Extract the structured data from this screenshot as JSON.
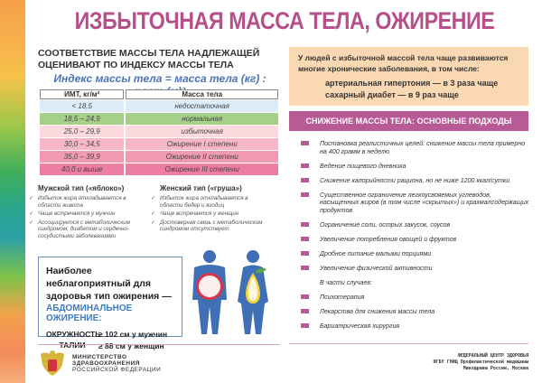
{
  "title": "ИЗБЫТОЧНАЯ МАССА ТЕЛА, ОЖИРЕНИЕ",
  "bmi_heading": "СООТВЕТСТВИЕ МАССЫ ТЕЛА НАДЛЕЖАЩЕЙ ОЦЕНИВАЮТ ПО ИНДЕКСУ МАССЫ ТЕЛА",
  "formula": "Индекс массы тела = масса тела (кг) : рост (м)²",
  "table": {
    "headers": [
      "ИМТ, кг/м²",
      "Масса тела"
    ],
    "rows": [
      {
        "bmi": "< 18,5",
        "mass": "недостаточная",
        "color": "#dcedf9"
      },
      {
        "bmi": "18,5 – 24,9",
        "mass": "нормальная",
        "color": "#a6d08a"
      },
      {
        "bmi": "25,0 – 29,9",
        "mass": "избыточная",
        "color": "#fbd9dc"
      },
      {
        "bmi": "30,0 – 34,5",
        "mass": "Ожирение I степени",
        "color": "#f7b8c6"
      },
      {
        "bmi": "35,0 – 39,9",
        "mass": "Ожирение II степени",
        "color": "#f29ab2"
      },
      {
        "bmi": "40,0 и выше",
        "mass": "Ожирение III степени",
        "color": "#ec7fa1"
      }
    ]
  },
  "male": {
    "title": "Мужской тип («яблоко»)",
    "items": [
      "Избыток жира откладывается в области живота",
      "Чаще встречается у мужчин",
      "Ассоциируется с метаболическим синдромом, диабетом и сердечно-сосудистыми заболеваниями"
    ]
  },
  "female": {
    "title": "Женский тип («груша»)",
    "items": [
      "Избыток жира откладывается в области бедер и ягодиц",
      "Чаще встречается у женщин",
      "Достоверная связь с метаболическим синдромом отсутствует"
    ]
  },
  "box": {
    "text": "Наиболее неблагоприятный для здоровья тип ожирения —",
    "accent": "АБДОМИНАЛЬНОЕ ОЖИРЕНИЕ:",
    "waist_label": "ОКРУЖНОСТЬ ТАЛИИ",
    "men": "≥ 102 см у мужчин",
    "women": "≥ 88 см у женщин"
  },
  "ministry": [
    "МИНИСТЕРСТВО",
    "ЗДРАВООХРАНЕНИЯ",
    "РОССИЙСКОЙ ФЕДЕРАЦИИ"
  ],
  "risk": {
    "intro": "У людей с избыточной массой тела чаще развиваются многие хронические заболевания, в том числе:",
    "line1": "артериальная гипертония — в 3 раза чаще",
    "line2": "сахарный диабет — в 9 раз чаще"
  },
  "approaches": {
    "title": "СНИЖЕНИЕ МАССЫ ТЕЛА: ОСНОВНЫЕ ПОДХОДЫ",
    "items": [
      "Постановка реалистичных целей: снижение массы тела примерно на 400 грамм в неделю",
      "Ведение пищевого дневника",
      "Снижение калорийности рациона, но не ниже 1200 ккал/сутки",
      "Существенное ограничение легкоусвояемых углеводов, насыщенных жиров (в том числе «скрытых») и крахмалсодержащих продуктов",
      "Ограничение соли, острых закусок, соусов",
      "Увеличение потребления овощей и фруктов",
      "Дробное питание малыми порциями",
      "Увеличение физической активности"
    ],
    "subheading": "В части случаев:",
    "extra": [
      "Психотерапия",
      "Лекарства для снижения массы тела",
      "Бариатрическая хирургия"
    ],
    "accent": "#b85a95"
  },
  "footer": [
    "ФЕДЕРАЛЬНЫЙ ЦЕНТР ЗДОРОВЬЯ",
    "ФГБУ ГНИЦ Профилактической медицины",
    "Минздрава России, Москва"
  ]
}
